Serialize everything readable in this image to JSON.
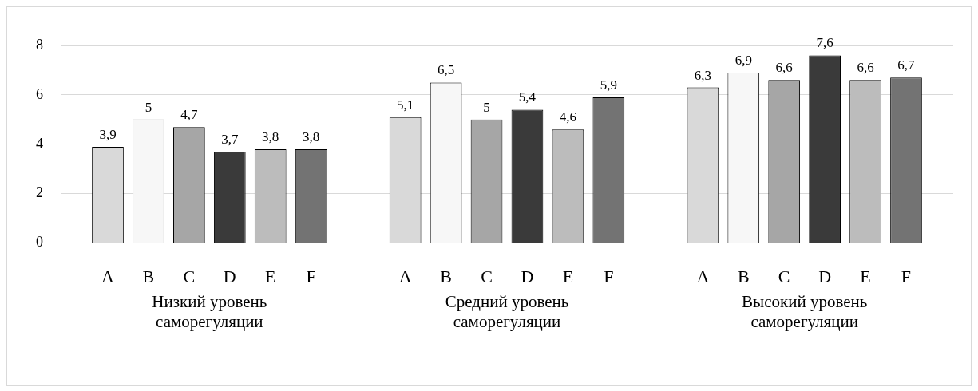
{
  "chart_data": {
    "type": "bar",
    "categories": [
      "Низкий уровень саморегуляции",
      "Средний уровень саморегуляции",
      "Высокий уровень саморегуляции"
    ],
    "series": [
      {
        "name": "A",
        "color": "#d9d9d9",
        "values": [
          3.9,
          5.1,
          6.3
        ],
        "value_labels": [
          "3,9",
          "5,1",
          "6,3"
        ]
      },
      {
        "name": "B",
        "color": "#f7f7f7",
        "values": [
          5,
          6.5,
          6.9
        ],
        "value_labels": [
          "5",
          "6,5",
          "6,9"
        ]
      },
      {
        "name": "C",
        "color": "#a6a6a6",
        "values": [
          4.7,
          5,
          6.6
        ],
        "value_labels": [
          "4,7",
          "5",
          "6,6"
        ]
      },
      {
        "name": "D",
        "color": "#3a3a3a",
        "values": [
          3.7,
          5.4,
          7.6
        ],
        "value_labels": [
          "3,7",
          "5,4",
          "7,6"
        ]
      },
      {
        "name": "E",
        "color": "#bcbcbc",
        "values": [
          3.8,
          4.6,
          6.6
        ],
        "value_labels": [
          "3,8",
          "4,6",
          "6,6"
        ]
      },
      {
        "name": "F",
        "color": "#737373",
        "values": [
          3.8,
          5.9,
          6.7
        ],
        "value_labels": [
          "3,8",
          "5,9",
          "6,7"
        ]
      }
    ],
    "ylim": [
      0,
      8
    ],
    "yticks": [
      0,
      2,
      4,
      6,
      8
    ],
    "grid": "y",
    "legend": false
  }
}
